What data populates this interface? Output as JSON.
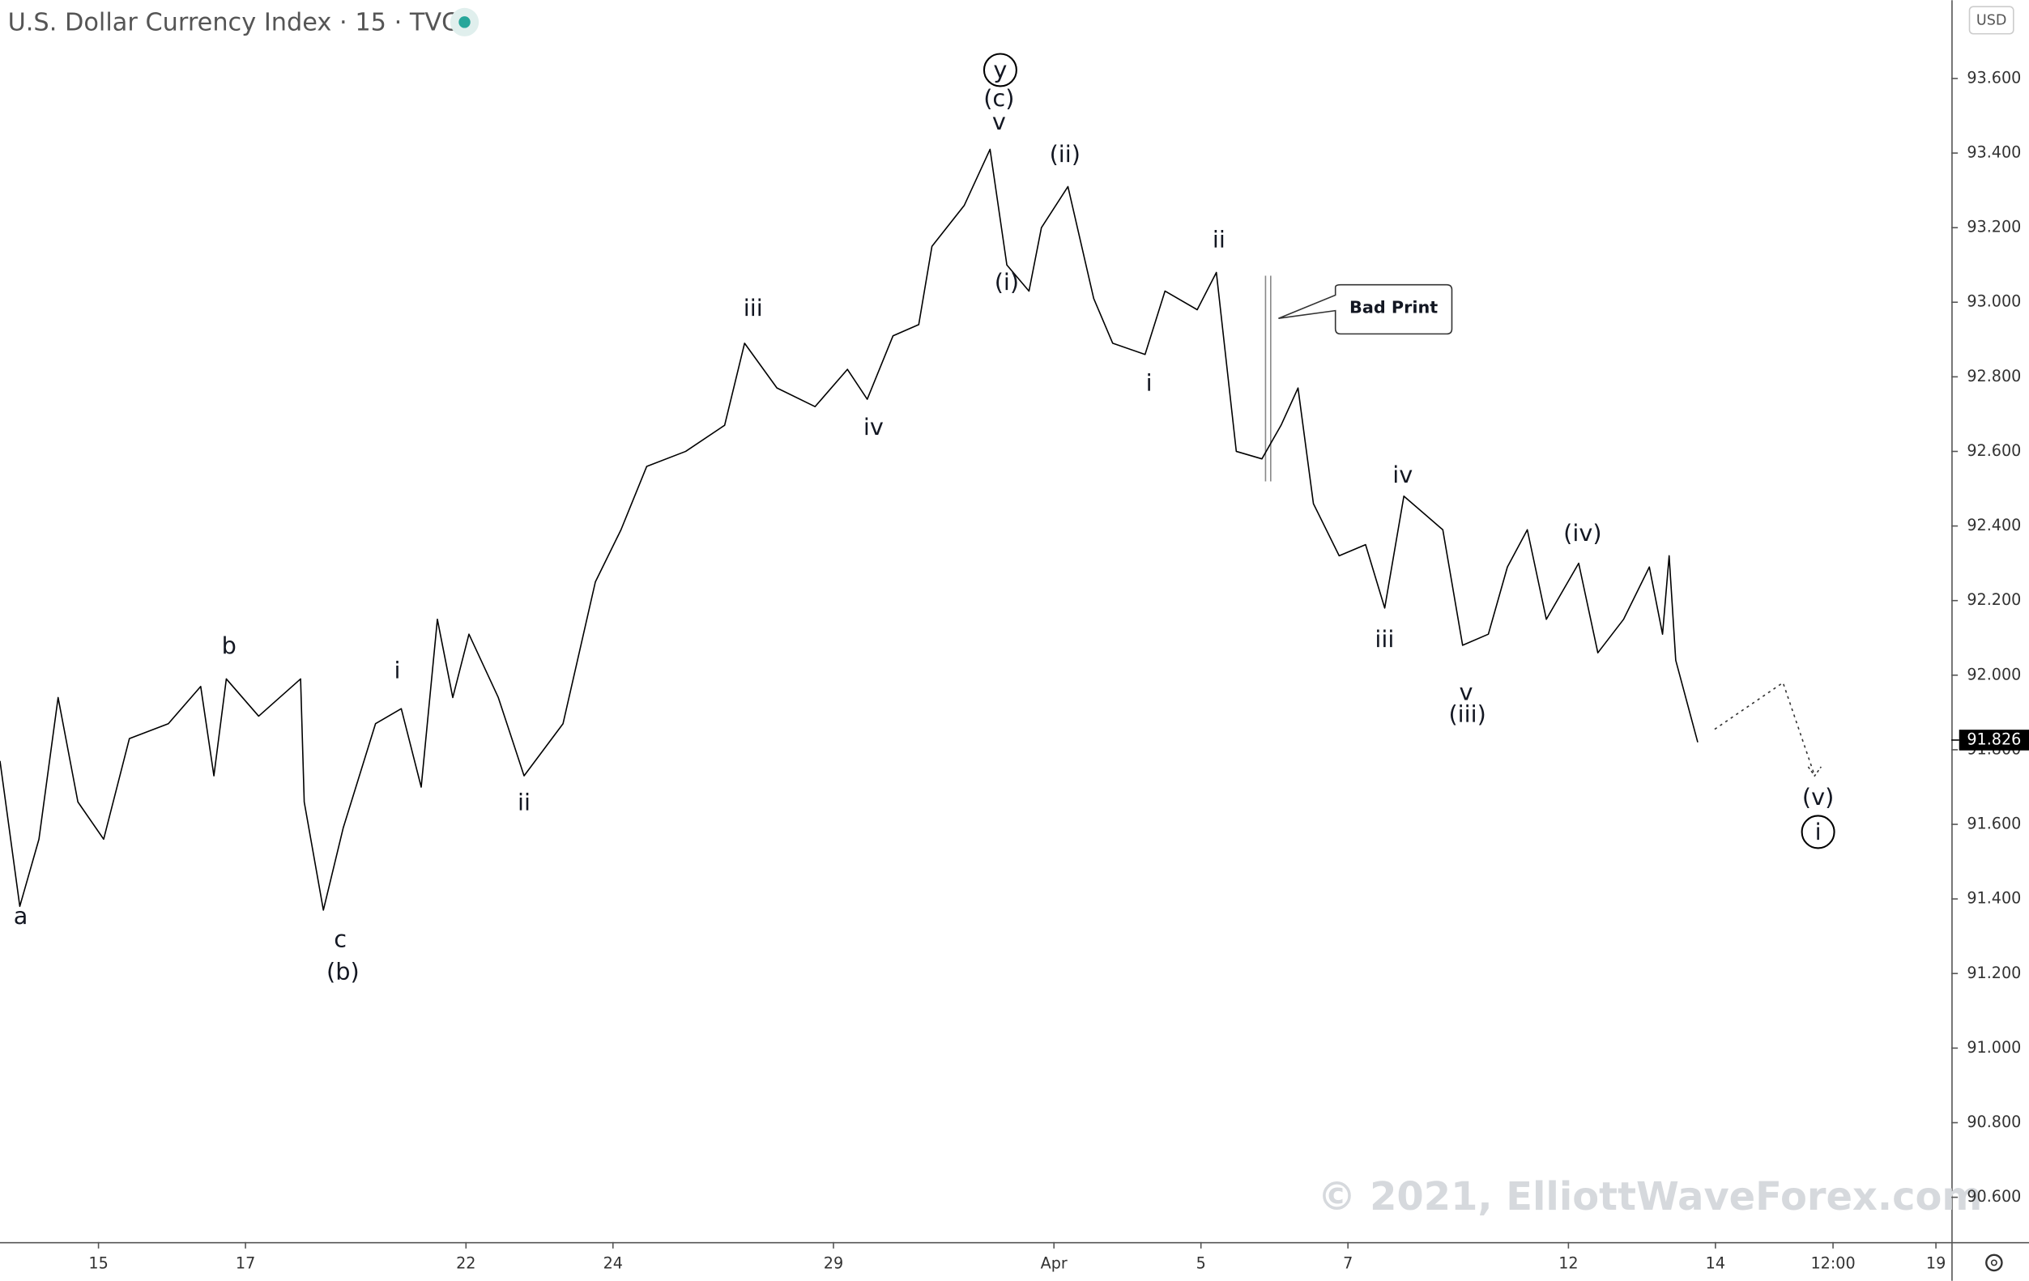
{
  "chart_data": {
    "type": "line",
    "title": "U.S. Dollar Currency Index · 15 · TVC",
    "currency": "USD",
    "color": "#000000",
    "x": [
      -1.34,
      -1.07,
      -0.81,
      -0.55,
      -0.28,
      0.07,
      0.42,
      0.95,
      1.39,
      1.57,
      1.74,
      2.18,
      2.75,
      2.8,
      3.06,
      3.33,
      3.77,
      4.12,
      4.39,
      4.61,
      4.82,
      5.04,
      5.44,
      5.79,
      6.32,
      6.76,
      7.11,
      7.46,
      7.99,
      8.52,
      8.79,
      9.23,
      9.75,
      10.19,
      10.46,
      10.81,
      11.16,
      11.34,
      11.78,
      12.13,
      12.36,
      12.66,
      12.83,
      13.19,
      13.54,
      13.8,
      14.24,
      14.51,
      14.95,
      15.21,
      15.48,
      15.83,
      16.09,
      16.32,
      16.53,
      16.88,
      17.24,
      17.5,
      17.76,
      18.29,
      18.56,
      18.91,
      19.17,
      19.44,
      19.7,
      20.14,
      20.4,
      20.75,
      21.1,
      21.28,
      21.37,
      21.46,
      21.76
    ],
    "values": [
      91.77,
      91.38,
      91.56,
      91.94,
      91.66,
      91.56,
      91.83,
      91.87,
      91.97,
      91.73,
      91.99,
      91.89,
      91.99,
      91.66,
      91.37,
      91.59,
      91.87,
      91.91,
      91.7,
      92.15,
      91.94,
      92.11,
      91.94,
      91.73,
      91.87,
      92.25,
      92.39,
      92.56,
      92.6,
      92.67,
      92.89,
      92.77,
      92.72,
      92.82,
      92.74,
      92.91,
      92.94,
      93.15,
      93.26,
      93.41,
      93.1,
      93.03,
      93.2,
      93.31,
      93.01,
      92.89,
      92.86,
      93.03,
      92.98,
      93.08,
      92.6,
      92.58,
      92.67,
      92.77,
      92.46,
      92.32,
      92.35,
      92.18,
      92.48,
      92.39,
      92.08,
      92.11,
      92.29,
      92.39,
      92.15,
      92.3,
      92.06,
      92.15,
      92.29,
      92.11,
      92.32,
      92.04,
      91.82
    ],
    "projection": {
      "x": [
        21.99,
        22.92,
        23.35
      ],
      "values": [
        91.855,
        91.98,
        91.73
      ]
    },
    "last_price": 91.826,
    "xlim": [
      -1.34,
      25.21
    ],
    "ylim": [
      90.48,
      93.81
    ],
    "xticks": [
      {
        "value": 0,
        "label": "15"
      },
      {
        "value": 2,
        "label": "17"
      },
      {
        "value": 5,
        "label": "22"
      },
      {
        "value": 7,
        "label": "24"
      },
      {
        "value": 10,
        "label": "29"
      },
      {
        "value": 13,
        "label": "Apr"
      },
      {
        "value": 15,
        "label": "5"
      },
      {
        "value": 17,
        "label": "7"
      },
      {
        "value": 20,
        "label": "12"
      },
      {
        "value": 22,
        "label": "14"
      },
      {
        "value": 23.6,
        "label": "12:00"
      },
      {
        "value": 25,
        "label": "19"
      }
    ],
    "yticks": [
      {
        "value": 90.6,
        "label": "90.600"
      },
      {
        "value": 90.8,
        "label": "90.800"
      },
      {
        "value": 91.0,
        "label": "91.000"
      },
      {
        "value": 91.2,
        "label": "91.200"
      },
      {
        "value": 91.4,
        "label": "91.400"
      },
      {
        "value": 91.6,
        "label": "91.600"
      },
      {
        "value": 91.8,
        "label": "91.800"
      },
      {
        "value": 92.0,
        "label": "92.000"
      },
      {
        "value": 92.2,
        "label": "92.200"
      },
      {
        "value": 92.4,
        "label": "92.400"
      },
      {
        "value": 92.6,
        "label": "92.600"
      },
      {
        "value": 92.8,
        "label": "92.800"
      },
      {
        "value": 93.0,
        "label": "93.000"
      },
      {
        "value": 93.2,
        "label": "93.200"
      },
      {
        "value": 93.4,
        "label": "93.400"
      },
      {
        "value": 93.6,
        "label": "93.600"
      }
    ],
    "annotations": [
      "y",
      "(c)",
      "v",
      "(ii)",
      "(i)",
      "iii",
      "iv",
      "ii",
      "i",
      "b",
      "i",
      "ii",
      "a",
      "c",
      "(b)",
      "iv",
      "iii",
      "(iv)",
      "v",
      "(iii)",
      "(v)",
      "i"
    ],
    "callout": "Bad Print",
    "watermark": "© 2021, ElliottWaveForex.com"
  }
}
